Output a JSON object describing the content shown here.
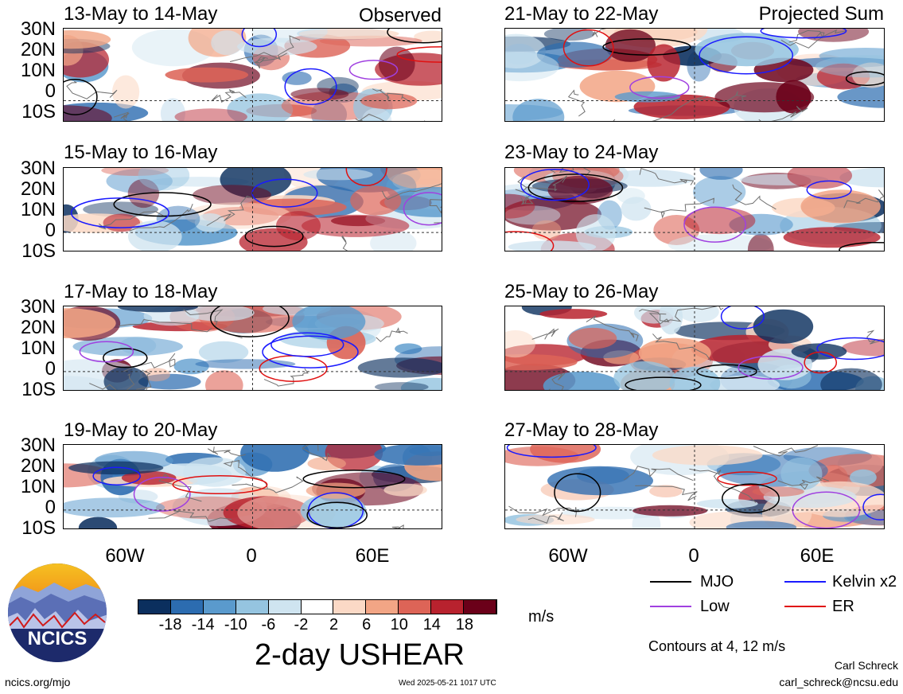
{
  "panels_left": [
    {
      "title": "13-May to 14-May",
      "label": "Observed"
    },
    {
      "title": "15-May to 16-May",
      "label": ""
    },
    {
      "title": "17-May to 18-May",
      "label": ""
    },
    {
      "title": "19-May to 20-May",
      "label": ""
    }
  ],
  "panels_right": [
    {
      "title": "21-May to 22-May",
      "label": "Projected Sum"
    },
    {
      "title": "23-May to 24-May",
      "label": ""
    },
    {
      "title": "25-May to 26-May",
      "label": ""
    },
    {
      "title": "27-May to 28-May",
      "label": ""
    }
  ],
  "lat_labels": [
    "30N",
    "20N",
    "10N",
    "0",
    "10S"
  ],
  "lon_labels": [
    "60W",
    "0",
    "60E"
  ],
  "colorbar": {
    "ticks": [
      "-18",
      "-14",
      "-10",
      "-6",
      "-2",
      "2",
      "6",
      "10",
      "14",
      "18"
    ],
    "colors": [
      "#0b2f5e",
      "#2c6cb0",
      "#5a9acd",
      "#95c4e0",
      "#cfe4f0",
      "#ffffff",
      "#fbd9c6",
      "#f2a585",
      "#dd6457",
      "#b8222e",
      "#6b0019"
    ],
    "units": "m/s"
  },
  "title": "2-day USHEAR",
  "legend": {
    "items": [
      {
        "label": "MJO",
        "color": "#000000"
      },
      {
        "label": "Kelvin x2",
        "color": "#1a1aff"
      },
      {
        "label": "Low",
        "color": "#a040e0"
      },
      {
        "label": "ER",
        "color": "#e01010"
      }
    ],
    "contours_note": "Contours at 4, 12 m/s"
  },
  "logo": {
    "text": "NCICS"
  },
  "footer": {
    "left": "ncics.org/mjo",
    "center": "Wed 2025-05-21 1017 UTC",
    "author": "Carl Schreck",
    "email": "carl_schreck@ncsu.edu"
  }
}
